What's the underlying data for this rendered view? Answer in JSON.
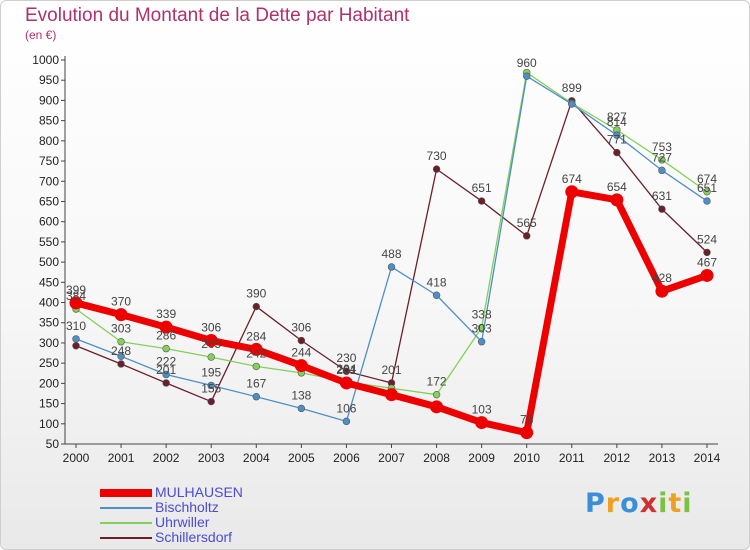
{
  "title": "Evolution du Montant de la Dette par Habitant",
  "subtitle": "(en €)",
  "brand": {
    "letters": [
      {
        "ch": "P",
        "color": "#3a8fd8"
      },
      {
        "ch": "r",
        "color": "#f0a020"
      },
      {
        "ch": "o",
        "color": "#3a8fd8"
      },
      {
        "ch": "x",
        "color": "#d03030"
      },
      {
        "ch": "i",
        "color": "#7cc242"
      },
      {
        "ch": "t",
        "color": "#f0a020"
      },
      {
        "ch": "i",
        "color": "#7cc242"
      }
    ]
  },
  "chart_data": {
    "type": "line",
    "categories": [
      "2000",
      "2001",
      "2002",
      "2003",
      "2004",
      "2005",
      "2006",
      "2007",
      "2008",
      "2009",
      "2010",
      "2011",
      "2012",
      "2013",
      "2014"
    ],
    "y_ticks": [
      50,
      100,
      150,
      200,
      250,
      300,
      350,
      400,
      450,
      500,
      550,
      600,
      650,
      700,
      750,
      800,
      850,
      900,
      950,
      1000
    ],
    "ylim": [
      50,
      1000
    ],
    "grid": false,
    "legend_position": "bottom-left",
    "series": [
      {
        "name": "MULHAUSEN",
        "color": "#ee0000",
        "values": [
          399,
          370,
          339,
          306,
          284,
          244,
          201,
          172,
          142,
          103,
          78,
          674,
          654,
          428,
          467
        ],
        "labels": [
          "399",
          "370",
          "339",
          "306",
          "284",
          "244",
          "201",
          "",
          "",
          "103",
          "78",
          "674",
          "654",
          "428",
          "467"
        ]
      },
      {
        "name": "Bischholtz",
        "color": "#4f8fc8",
        "values": [
          310,
          267,
          222,
          195,
          167,
          138,
          106,
          488,
          418,
          303,
          960,
          891,
          814,
          727,
          651
        ],
        "labels": [
          "310",
          "",
          "222",
          "195",
          "167",
          "138",
          "106",
          "488",
          "418",
          "303",
          "960",
          "",
          "814",
          "727",
          "651"
        ]
      },
      {
        "name": "Uhrwiller",
        "color": "#84d05a",
        "values": [
          384,
          303,
          286,
          265,
          242,
          226,
          204,
          188,
          172,
          338,
          969,
          893,
          827,
          753,
          674
        ],
        "labels": [
          "384",
          "303",
          "286",
          "265",
          "242",
          "",
          "204",
          "",
          "172",
          "338",
          "",
          "",
          "827",
          "753",
          "674"
        ]
      },
      {
        "name": "Schillersdorf",
        "color": "#6b1f2a",
        "values": [
          293,
          248,
          201,
          155,
          390,
          306,
          230,
          201,
          730,
          651,
          565,
          899,
          771,
          631,
          524
        ],
        "labels": [
          "",
          "248",
          "201",
          "155",
          "390",
          "306",
          "230",
          "201",
          "730",
          "651",
          "565",
          "899",
          "771",
          "631",
          "524"
        ]
      }
    ]
  }
}
